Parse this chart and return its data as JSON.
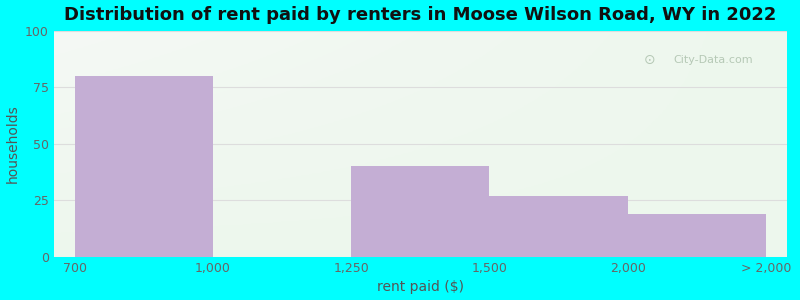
{
  "title": "Distribution of rent paid by renters in Moose Wilson Road, WY in 2022",
  "xlabel": "rent paid ($)",
  "ylabel": "households",
  "bar_values": [
    80,
    40,
    27,
    19
  ],
  "bar_color": "#c4aed4",
  "xtick_labels": [
    "700",
    "1,000",
    "1,250",
    "1,500",
    "2,000",
    "> 2,000"
  ],
  "ytick_positions": [
    0,
    25,
    50,
    75,
    100
  ],
  "ytick_labels": [
    "0",
    "25",
    "50",
    "75",
    "100"
  ],
  "ylim": [
    0,
    100
  ],
  "outer_bg": "#00FFFF",
  "inner_bg_left": "#d4f0d4",
  "inner_bg_right": "#f0f8f0",
  "grid_color": "#dddddd",
  "title_fontsize": 13,
  "axis_label_fontsize": 10,
  "tick_fontsize": 9,
  "watermark": "City-Data.com"
}
